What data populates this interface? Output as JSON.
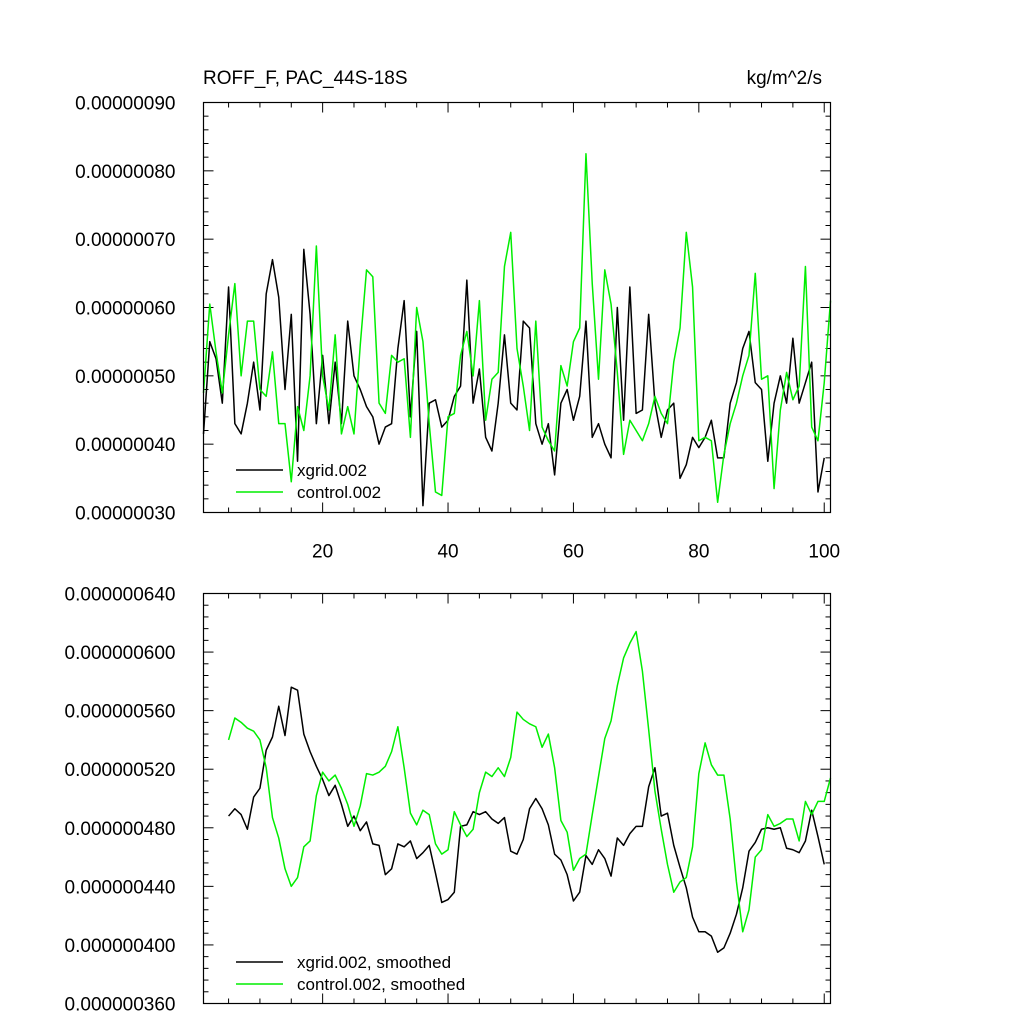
{
  "chart_data": [
    {
      "type": "line",
      "title": "ROFF_F, PAC_44S-18S",
      "units": "kg/m^2/s",
      "xlim": [
        1,
        101
      ],
      "ylim": [
        3e-07,
        9e-07
      ],
      "xticks": [
        20,
        40,
        60,
        80,
        100
      ],
      "xtick_labels": [
        "20",
        "40",
        "60",
        "80",
        "100"
      ],
      "yticks": [
        3e-07,
        4e-07,
        5e-07,
        6e-07,
        7e-07,
        8e-07,
        9e-07
      ],
      "ytick_labels": [
        "0.00000030",
        "0.00000040",
        "0.00000050",
        "0.00000060",
        "0.00000070",
        "0.00000080",
        "0.00000090"
      ],
      "legend_position": "bottom-left",
      "series": [
        {
          "name": "xgrid.002",
          "color": "#000000",
          "x_start": 1,
          "values": [
            4.15e-07,
            5.5e-07,
            5.25e-07,
            4.6e-07,
            6.3e-07,
            4.3e-07,
            4.15e-07,
            4.6e-07,
            5.2e-07,
            4.5e-07,
            6.2e-07,
            6.7e-07,
            6.15e-07,
            4.8e-07,
            5.9e-07,
            3.75e-07,
            6.85e-07,
            5.9e-07,
            4.3e-07,
            5.3e-07,
            4.3e-07,
            5.2e-07,
            4.3e-07,
            5.8e-07,
            5e-07,
            4.8e-07,
            4.55e-07,
            4.4e-07,
            4e-07,
            4.25e-07,
            4.3e-07,
            5.4e-07,
            6.1e-07,
            4.4e-07,
            5.65e-07,
            3.1e-07,
            4.6e-07,
            4.65e-07,
            4.25e-07,
            4.35e-07,
            4.7e-07,
            4.85e-07,
            6.4e-07,
            4.6e-07,
            5.1e-07,
            4.1e-07,
            3.9e-07,
            4.6e-07,
            5.6e-07,
            4.6e-07,
            4.5e-07,
            5.8e-07,
            5.7e-07,
            4.3e-07,
            4e-07,
            4.3e-07,
            3.55e-07,
            4.6e-07,
            4.8e-07,
            4.35e-07,
            4.7e-07,
            5.8e-07,
            4.1e-07,
            4.3e-07,
            4e-07,
            3.8e-07,
            6e-07,
            4.35e-07,
            6.3e-07,
            4.45e-07,
            4.5e-07,
            5.9e-07,
            4.6e-07,
            4.1e-07,
            4.5e-07,
            4.6e-07,
            3.5e-07,
            3.7e-07,
            4.1e-07,
            3.95e-07,
            4.1e-07,
            4.35e-07,
            3.8e-07,
            3.8e-07,
            4.6e-07,
            4.9e-07,
            5.4e-07,
            5.65e-07,
            4.9e-07,
            4.8e-07,
            3.75e-07,
            4.6e-07,
            5e-07,
            4.6e-07,
            5.55e-07,
            4.6e-07,
            4.9e-07,
            5.2e-07,
            3.3e-07,
            3.8e-07
          ]
        },
        {
          "name": "control.002",
          "color": "#00ee00",
          "x_start": 1,
          "values": [
            4.75e-07,
            6.05e-07,
            5.35e-07,
            4.75e-07,
            5.6e-07,
            6.35e-07,
            5e-07,
            5.8e-07,
            5.8e-07,
            4.8e-07,
            4.7e-07,
            5.35e-07,
            4.3e-07,
            4.3e-07,
            3.45e-07,
            4.55e-07,
            4.2e-07,
            5e-07,
            6.9e-07,
            5e-07,
            4.5e-07,
            5.6e-07,
            4.15e-07,
            4.55e-07,
            4.15e-07,
            5.45e-07,
            6.55e-07,
            6.45e-07,
            4.6e-07,
            4.45e-07,
            5.3e-07,
            5.2e-07,
            5.25e-07,
            4.1e-07,
            6e-07,
            5.5e-07,
            4.3e-07,
            3.3e-07,
            3.25e-07,
            4.4e-07,
            4.45e-07,
            5.3e-07,
            5.65e-07,
            5e-07,
            6.1e-07,
            4.35e-07,
            4.95e-07,
            5.05e-07,
            6.6e-07,
            7.1e-07,
            5.4e-07,
            4.85e-07,
            4.2e-07,
            5.8e-07,
            4.25e-07,
            4.05e-07,
            3.9e-07,
            5.15e-07,
            4.85e-07,
            5.5e-07,
            5.7e-07,
            8.25e-07,
            6.35e-07,
            4.95e-07,
            6.55e-07,
            6.05e-07,
            5.05e-07,
            3.85e-07,
            4.35e-07,
            4.2e-07,
            4.05e-07,
            4.3e-07,
            4.7e-07,
            4.45e-07,
            4.3e-07,
            5.2e-07,
            5.7e-07,
            7.1e-07,
            6.3e-07,
            4.05e-07,
            4.1e-07,
            4.05e-07,
            3.15e-07,
            3.85e-07,
            4.3e-07,
            4.6e-07,
            5e-07,
            5.3e-07,
            6.5e-07,
            4.95e-07,
            5e-07,
            3.35e-07,
            4.5e-07,
            5.05e-07,
            4.65e-07,
            4.85e-07,
            6.6e-07,
            4.25e-07,
            4.05e-07,
            4.9e-07,
            6.1e-07
          ]
        }
      ]
    },
    {
      "type": "line",
      "title": "",
      "xlim": [
        1,
        101
      ],
      "ylim": [
        3.6e-07,
        6.4e-07
      ],
      "xticks": [
        20,
        40,
        60,
        80,
        100
      ],
      "xtick_labels": [],
      "yticks": [
        3.6e-07,
        4e-07,
        4.4e-07,
        4.8e-07,
        5.2e-07,
        5.6e-07,
        6e-07,
        6.4e-07
      ],
      "ytick_labels": [
        "0.000000360",
        "0.000000400",
        "0.000000440",
        "0.000000480",
        "0.000000520",
        "0.000000560",
        "0.000000600",
        "0.000000640"
      ],
      "legend_position": "bottom-left",
      "series": [
        {
          "name": "xgrid.002, smoothed",
          "color": "#000000",
          "x_start": 5,
          "values": [
            4.88e-07,
            4.93e-07,
            4.89e-07,
            4.79e-07,
            5.01e-07,
            5.07e-07,
            5.33e-07,
            5.42e-07,
            5.63e-07,
            5.43e-07,
            5.76e-07,
            5.74e-07,
            5.44e-07,
            5.32e-07,
            5.22e-07,
            5.13e-07,
            5.02e-07,
            5.09e-07,
            4.96e-07,
            4.81e-07,
            4.88e-07,
            4.78e-07,
            4.84e-07,
            4.69e-07,
            4.68e-07,
            4.48e-07,
            4.52e-07,
            4.69e-07,
            4.67e-07,
            4.71e-07,
            4.59e-07,
            4.63e-07,
            4.68e-07,
            4.49e-07,
            4.29e-07,
            4.31e-07,
            4.36e-07,
            4.81e-07,
            4.82e-07,
            4.91e-07,
            4.89e-07,
            4.91e-07,
            4.86e-07,
            4.83e-07,
            4.87e-07,
            4.64e-07,
            4.62e-07,
            4.72e-07,
            4.93e-07,
            5e-07,
            4.93e-07,
            4.82e-07,
            4.62e-07,
            4.58e-07,
            4.48e-07,
            4.3e-07,
            4.36e-07,
            4.61e-07,
            4.55e-07,
            4.65e-07,
            4.59e-07,
            4.47e-07,
            4.73e-07,
            4.68e-07,
            4.76e-07,
            4.81e-07,
            4.81e-07,
            5.08e-07,
            5.21e-07,
            4.88e-07,
            4.9e-07,
            4.68e-07,
            4.53e-07,
            4.39e-07,
            4.19e-07,
            4.09e-07,
            4.09e-07,
            4.06e-07,
            3.95e-07,
            3.98e-07,
            4.08e-07,
            4.21e-07,
            4.39e-07,
            4.64e-07,
            4.7e-07,
            4.79e-07,
            4.8e-07,
            4.79e-07,
            4.8e-07,
            4.66e-07,
            4.65e-07,
            4.63e-07,
            4.71e-07,
            4.92e-07,
            4.74e-07,
            4.55e-07
          ]
        },
        {
          "name": "control.002, smoothed",
          "color": "#00ee00",
          "x_start": 5,
          "values": [
            5.4e-07,
            5.55e-07,
            5.52e-07,
            5.48e-07,
            5.46e-07,
            5.4e-07,
            5.21e-07,
            4.87e-07,
            4.73e-07,
            4.52e-07,
            4.4e-07,
            4.46e-07,
            4.67e-07,
            4.71e-07,
            5.02e-07,
            5.18e-07,
            5.12e-07,
            5.16e-07,
            5.07e-07,
            4.96e-07,
            4.81e-07,
            4.95e-07,
            5.17e-07,
            5.16e-07,
            5.18e-07,
            5.22e-07,
            5.32e-07,
            5.49e-07,
            5.21e-07,
            4.9e-07,
            4.82e-07,
            4.92e-07,
            4.89e-07,
            4.69e-07,
            4.62e-07,
            4.65e-07,
            4.91e-07,
            4.82e-07,
            4.74e-07,
            4.79e-07,
            5.04e-07,
            5.18e-07,
            5.15e-07,
            5.21e-07,
            5.15e-07,
            5.28e-07,
            5.59e-07,
            5.54e-07,
            5.51e-07,
            5.49e-07,
            5.35e-07,
            5.44e-07,
            5.21e-07,
            4.85e-07,
            4.77e-07,
            4.51e-07,
            4.59e-07,
            4.62e-07,
            4.89e-07,
            5.15e-07,
            5.41e-07,
            5.53e-07,
            5.77e-07,
            5.96e-07,
            6.06e-07,
            6.14e-07,
            5.87e-07,
            5.47e-07,
            5.05e-07,
            4.79e-07,
            4.55e-07,
            4.36e-07,
            4.43e-07,
            4.46e-07,
            4.67e-07,
            5.17e-07,
            5.38e-07,
            5.23e-07,
            5.16e-07,
            5.16e-07,
            4.86e-07,
            4.43e-07,
            4.09e-07,
            4.24e-07,
            4.6e-07,
            4.65e-07,
            4.89e-07,
            4.81e-07,
            4.83e-07,
            4.86e-07,
            4.86e-07,
            4.71e-07,
            4.98e-07,
            4.89e-07,
            4.98e-07,
            4.98e-07,
            5.14e-07
          ]
        }
      ]
    }
  ]
}
